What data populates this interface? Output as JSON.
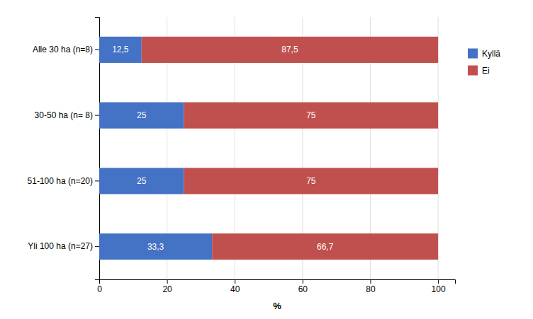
{
  "chart_data": {
    "type": "bar",
    "orientation": "horizontal",
    "stacked": true,
    "xlabel": "%",
    "categories": [
      "Yli 100 ha (n=27)",
      "51-100 ha (n=20)",
      "30-50 ha (n= 8)",
      "Alle 30 ha (n=8)"
    ],
    "series": [
      {
        "name": "Kyllä",
        "color": "#4472C4",
        "values": [
          33.3,
          25,
          25,
          12.5
        ],
        "value_labels": [
          "33,3",
          "25",
          "25",
          "12,5"
        ]
      },
      {
        "name": "Ei",
        "color": "#C0504D",
        "values": [
          66.7,
          75,
          75,
          87.5
        ],
        "value_labels": [
          "66,7",
          "75",
          "75",
          "87,5"
        ]
      }
    ],
    "xlim": [
      0,
      105
    ],
    "xticks": [
      0,
      20,
      40,
      60,
      80,
      100
    ],
    "grid": true,
    "legend": "right",
    "data_labels": true
  }
}
